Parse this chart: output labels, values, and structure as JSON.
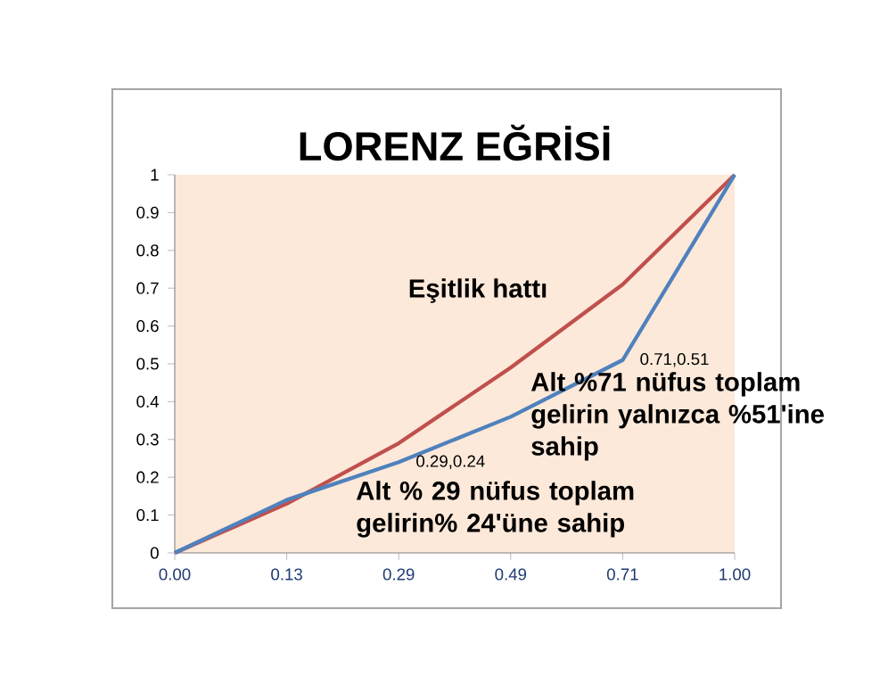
{
  "chart_data": {
    "type": "line",
    "title": "LORENZ EĞRİSİ",
    "categories": [
      "0.00",
      "0.13",
      "0.29",
      "0.49",
      "0.71",
      "1.00"
    ],
    "series": [
      {
        "color": "#c0504d",
        "values": [
          0,
          0.13,
          0.29,
          0.49,
          0.71,
          1
        ]
      },
      {
        "color": "#4f81bd",
        "values": [
          0,
          0.14,
          0.24,
          0.36,
          0.51,
          1
        ]
      }
    ],
    "ylim": [
      0,
      1
    ],
    "yticks": [
      0,
      0.1,
      0.2,
      0.3,
      0.4,
      0.5,
      0.6,
      0.7,
      0.8,
      0.9,
      1
    ],
    "grid": false,
    "annotations": [
      "Eşitlik hattı",
      "Alt %71 nüfus toplam gelirin yalnızca %51'ine sahip",
      "Alt % 29 nüfus toplam gelirin% 24'üne sahip",
      {
        "text": "0.29,0.24",
        "x": "0.29",
        "y": 0.24
      },
      {
        "text": "0.71,0.51",
        "x": "0.71",
        "y": 0.51
      }
    ]
  }
}
